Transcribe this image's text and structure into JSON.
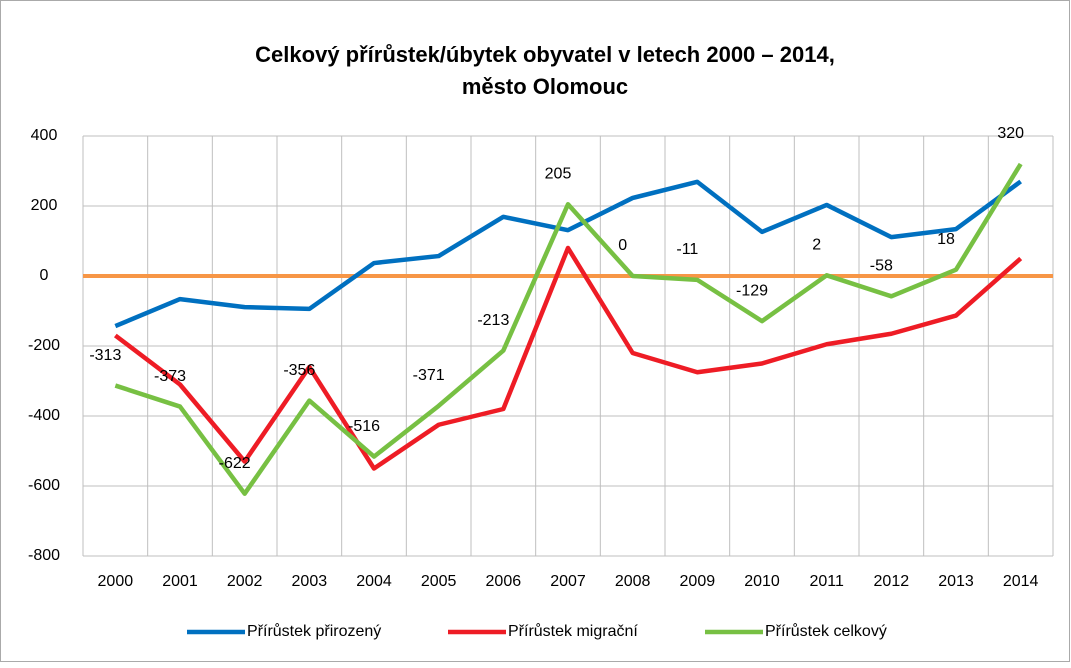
{
  "chart_data": {
    "type": "line",
    "title": [
      "Celkový přírůstek/úbytek obyvatel v letech 2000 – 2014,",
      "město Olomouc"
    ],
    "categories": [
      "2000",
      "2001",
      "2002",
      "2003",
      "2004",
      "2005",
      "2006",
      "2007",
      "2008",
      "2009",
      "2010",
      "2011",
      "2012",
      "2013",
      "2014"
    ],
    "series": [
      {
        "name": "Přírůstek přirozený",
        "color": "#0070c0",
        "data_labels": false,
        "values": [
          -143,
          -66,
          -89,
          -94,
          37,
          57,
          169,
          131,
          223,
          269,
          126,
          203,
          111,
          134,
          270
        ]
      },
      {
        "name": "Přírůstek migrační",
        "color": "#ee1c25",
        "data_labels": false,
        "values": [
          -170,
          -310,
          -530,
          -260,
          -550,
          -425,
          -380,
          80,
          -220,
          -275,
          -250,
          -195,
          -165,
          -113,
          50
        ]
      },
      {
        "name": "Přírůstek celkový",
        "color": "#77c043",
        "data_labels": true,
        "values": [
          -313,
          -373,
          -622,
          -356,
          -516,
          -371,
          -213,
          205,
          0,
          -11,
          -129,
          2,
          -58,
          18,
          320
        ]
      }
    ],
    "reference_line": {
      "value": 0,
      "color": "#f79646"
    },
    "ylim": [
      -800,
      400
    ],
    "yticks": [
      -800,
      -600,
      -400,
      -200,
      0,
      200,
      400
    ],
    "grid": true,
    "legend": "bottom"
  }
}
